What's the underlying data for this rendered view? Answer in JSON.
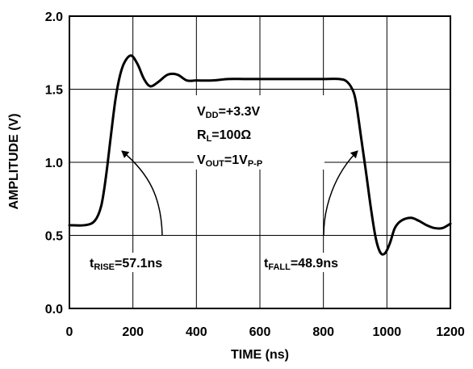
{
  "chart_data": {
    "type": "line",
    "title": "",
    "xlabel": "TIME (ns)",
    "ylabel": "AMPLITUDE (V)",
    "xlim": [
      0,
      1200
    ],
    "ylim": [
      0.0,
      2.0
    ],
    "x_ticks": [
      0,
      200,
      400,
      600,
      800,
      1000,
      1200
    ],
    "x_tick_labels": [
      "0",
      "200",
      "400",
      "600",
      "800",
      "1000",
      "1200"
    ],
    "y_ticks": [
      0.0,
      0.5,
      1.0,
      1.5,
      2.0
    ],
    "y_tick_labels": [
      "0.0",
      "0.5",
      "1.0",
      "1.5",
      "2.0"
    ],
    "grid": true,
    "series": [
      {
        "x": [
          0,
          50,
          80,
          100,
          115,
          130,
          145,
          160,
          175,
          195,
          215,
          235,
          255,
          280,
          310,
          340,
          370,
          400,
          450,
          500,
          550,
          600,
          650,
          700,
          750,
          800,
          850,
          875,
          895,
          905,
          920,
          935,
          950,
          965,
          980,
          995,
          1010,
          1025,
          1045,
          1075,
          1100,
          1125,
          1150,
          1175,
          1200
        ],
        "values": [
          0.57,
          0.57,
          0.6,
          0.7,
          0.9,
          1.17,
          1.43,
          1.6,
          1.69,
          1.73,
          1.67,
          1.57,
          1.52,
          1.55,
          1.6,
          1.6,
          1.56,
          1.56,
          1.56,
          1.57,
          1.57,
          1.57,
          1.57,
          1.57,
          1.57,
          1.57,
          1.57,
          1.55,
          1.48,
          1.38,
          1.15,
          0.92,
          0.68,
          0.48,
          0.38,
          0.38,
          0.45,
          0.55,
          0.6,
          0.62,
          0.6,
          0.57,
          0.55,
          0.55,
          0.58
        ]
      }
    ],
    "annotations": {
      "vdd": {
        "main": "V",
        "sub": "DD",
        "rest": "=+3.3V"
      },
      "rl": {
        "main": "R",
        "sub": "L",
        "rest": "=100Ω"
      },
      "vout": {
        "main": "V",
        "sub": "OUT",
        "rest": "=1V",
        "sub2": "P-P"
      },
      "trise": {
        "main": "t",
        "sub": "RISE",
        "rest": "=57.1ns"
      },
      "tfall": {
        "main": "t",
        "sub": "FALL",
        "rest": "=48.9ns"
      }
    }
  }
}
